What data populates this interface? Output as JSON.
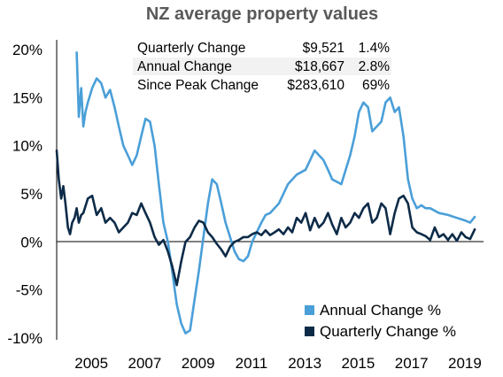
{
  "chart_data": {
    "type": "line",
    "title": "NZ average property values",
    "ylim": [
      -10,
      20
    ],
    "y_ticks": [
      "20%",
      "15%",
      "10%",
      "5%",
      "0%",
      "-5%",
      "-10%"
    ],
    "x_range": [
      2004.0,
      2020.0
    ],
    "x_ticks": [
      "2005",
      "2007",
      "2009",
      "2011",
      "2013",
      "2015",
      "2017",
      "2019"
    ],
    "legend_position": "bottom-right",
    "stats": [
      {
        "label": "Quarterly Change",
        "value": "$9,521",
        "pct": "1.4%"
      },
      {
        "label": "Annual Change",
        "value": "$18,667",
        "pct": "2.8%"
      },
      {
        "label": "Since Peak Change",
        "value": "$283,610",
        "pct": "69%"
      }
    ],
    "series": [
      {
        "name": "Annual Change %",
        "color": "#4a9fd8",
        "x": [
          2004.75,
          2004.83,
          2004.92,
          2005.0,
          2005.08,
          2005.17,
          2005.33,
          2005.5,
          2005.67,
          2005.83,
          2006.0,
          2006.17,
          2006.33,
          2006.5,
          2006.67,
          2006.83,
          2007.0,
          2007.17,
          2007.33,
          2007.5,
          2007.67,
          2007.83,
          2008.0,
          2008.17,
          2008.33,
          2008.5,
          2008.67,
          2008.83,
          2009.0,
          2009.17,
          2009.33,
          2009.5,
          2009.67,
          2009.83,
          2010.0,
          2010.17,
          2010.33,
          2010.5,
          2010.67,
          2010.83,
          2011.0,
          2011.17,
          2011.33,
          2011.5,
          2011.67,
          2011.83,
          2012.0,
          2012.33,
          2012.67,
          2013.0,
          2013.33,
          2013.67,
          2014.0,
          2014.17,
          2014.33,
          2014.67,
          2015.0,
          2015.17,
          2015.33,
          2015.5,
          2015.67,
          2015.83,
          2016.0,
          2016.17,
          2016.33,
          2016.5,
          2016.67,
          2016.83,
          2017.0,
          2017.17,
          2017.33,
          2017.5,
          2017.67,
          2017.83,
          2018.0,
          2018.33,
          2018.67,
          2019.0,
          2019.33,
          2019.5,
          2019.67
        ],
        "y": [
          19.7,
          13.0,
          16.0,
          12.0,
          13.5,
          14.5,
          16.0,
          17.0,
          16.5,
          15.0,
          15.8,
          14.0,
          12.0,
          10.0,
          9.0,
          8.0,
          9.0,
          11.0,
          12.8,
          12.5,
          10.0,
          6.0,
          2.0,
          0.0,
          -3.0,
          -6.5,
          -8.5,
          -9.5,
          -9.2,
          -6.0,
          -3.0,
          0.5,
          4.0,
          6.5,
          6.0,
          4.0,
          2.0,
          0.5,
          -1.0,
          -1.8,
          -2.0,
          -1.5,
          0.0,
          1.0,
          2.0,
          2.8,
          3.0,
          4.0,
          6.0,
          7.0,
          7.5,
          9.5,
          8.5,
          7.5,
          6.5,
          6.0,
          9.0,
          11.0,
          13.5,
          14.5,
          14.0,
          11.5,
          12.0,
          12.5,
          14.5,
          15.0,
          13.5,
          14.0,
          11.0,
          6.5,
          4.5,
          3.5,
          3.8,
          3.5,
          3.5,
          3.0,
          2.8,
          2.5,
          2.2,
          2.0,
          2.6
        ]
      },
      {
        "name": "Quarterly Change %",
        "color": "#0d2b48",
        "x": [
          2004.0,
          2004.08,
          2004.17,
          2004.25,
          2004.33,
          2004.42,
          2004.5,
          2004.58,
          2004.67,
          2004.75,
          2004.83,
          2004.92,
          2005.0,
          2005.17,
          2005.33,
          2005.5,
          2005.67,
          2005.83,
          2006.0,
          2006.17,
          2006.33,
          2006.5,
          2006.67,
          2006.83,
          2007.0,
          2007.17,
          2007.33,
          2007.5,
          2007.67,
          2007.83,
          2008.0,
          2008.17,
          2008.33,
          2008.5,
          2008.67,
          2008.83,
          2009.0,
          2009.17,
          2009.33,
          2009.5,
          2009.67,
          2009.83,
          2010.0,
          2010.17,
          2010.33,
          2010.5,
          2010.67,
          2010.83,
          2011.0,
          2011.17,
          2011.33,
          2011.5,
          2011.67,
          2011.83,
          2012.0,
          2012.17,
          2012.33,
          2012.5,
          2012.67,
          2012.83,
          2013.0,
          2013.17,
          2013.33,
          2013.5,
          2013.67,
          2013.83,
          2014.0,
          2014.17,
          2014.33,
          2014.5,
          2014.67,
          2014.83,
          2015.0,
          2015.17,
          2015.33,
          2015.5,
          2015.67,
          2015.83,
          2016.0,
          2016.17,
          2016.33,
          2016.5,
          2016.67,
          2016.83,
          2017.0,
          2017.17,
          2017.33,
          2017.5,
          2017.67,
          2017.83,
          2018.0,
          2018.17,
          2018.33,
          2018.5,
          2018.67,
          2018.83,
          2019.0,
          2019.17,
          2019.33,
          2019.5,
          2019.67
        ],
        "y": [
          9.5,
          6.5,
          4.5,
          5.8,
          4.0,
          1.5,
          0.8,
          2.0,
          2.5,
          3.5,
          2.0,
          2.8,
          3.0,
          4.5,
          4.8,
          2.8,
          3.5,
          2.0,
          2.5,
          2.0,
          1.0,
          1.5,
          2.0,
          3.0,
          2.8,
          4.0,
          3.0,
          2.0,
          0.5,
          -0.3,
          0.2,
          -1.0,
          -2.5,
          -4.5,
          -2.0,
          0.0,
          0.5,
          1.5,
          2.2,
          2.0,
          1.0,
          0.5,
          -0.2,
          -0.8,
          -1.5,
          -0.5,
          0.0,
          0.2,
          0.5,
          0.5,
          0.8,
          1.0,
          0.7,
          1.2,
          0.7,
          1.0,
          1.3,
          0.8,
          1.5,
          1.0,
          2.5,
          2.0,
          3.0,
          1.2,
          2.5,
          1.5,
          2.0,
          3.0,
          1.8,
          0.8,
          2.5,
          1.5,
          2.0,
          3.0,
          2.5,
          3.5,
          4.0,
          2.0,
          2.5,
          4.0,
          3.5,
          0.8,
          3.0,
          4.5,
          4.8,
          4.0,
          1.5,
          1.0,
          0.8,
          0.6,
          0.2,
          1.5,
          0.5,
          0.8,
          0.2,
          0.8,
          0.1,
          1.0,
          0.5,
          0.3,
          1.3
        ]
      }
    ]
  }
}
